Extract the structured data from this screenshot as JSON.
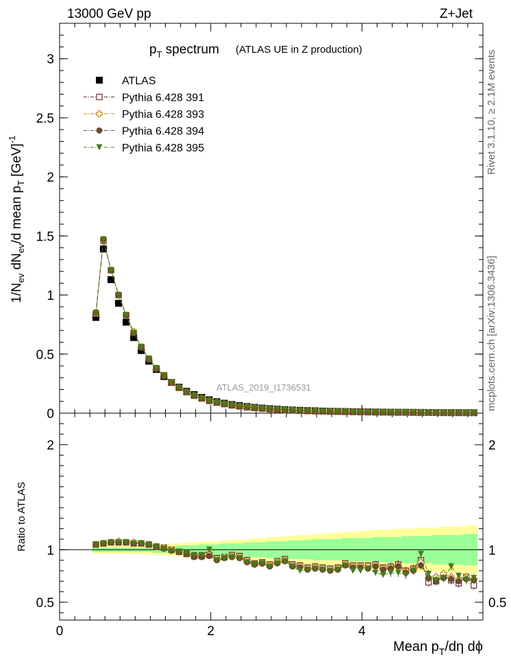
{
  "header": {
    "left": "13000 GeV pp",
    "right": "Z+Jet"
  },
  "title": {
    "main": "p",
    "sub": "T",
    "rest": " spectrum",
    "paren": "(ATLAS UE in Z production)"
  },
  "side_labels": {
    "rivet": "Rivet 3.1.10, ≥ 2.1M events",
    "mcplots": "mcplots.cern.ch [arXiv:1306.3436]"
  },
  "watermark": "ATLAS_2019_I1736531",
  "axes": {
    "ylabel_main": "1/N_ev dN_ev/d mean p_T [GeV]^-1",
    "ylabel_ratio": "Ratio to ATLAS",
    "xlabel": "Mean p_T/dη dϕ"
  },
  "chart_data": [
    {
      "type": "scatter",
      "panel": "main",
      "x": [
        0.48,
        0.58,
        0.68,
        0.78,
        0.88,
        0.98,
        1.08,
        1.18,
        1.28,
        1.38,
        1.48,
        1.58,
        1.68,
        1.78,
        1.88,
        1.98,
        2.08,
        2.18,
        2.28,
        2.38,
        2.48,
        2.58,
        2.68,
        2.78,
        2.88,
        2.98,
        3.08,
        3.18,
        3.28,
        3.38,
        3.48,
        3.58,
        3.68,
        3.78,
        3.88,
        3.98,
        4.08,
        4.18,
        4.28,
        4.38,
        4.48,
        4.58,
        4.68,
        4.78,
        4.88,
        4.98,
        5.08,
        5.18,
        5.28,
        5.38,
        5.48
      ],
      "xlim": [
        0,
        5.6
      ],
      "ylim": [
        0,
        3.3
      ],
      "xticks": [
        "0",
        "2",
        "4"
      ],
      "yticks": [
        "0",
        "0.5",
        "1",
        "1.5",
        "2",
        "2.5",
        "3"
      ],
      "series": [
        {
          "name": "ATLAS",
          "color": "#000000",
          "marker": "square-filled",
          "values": [
            0.81,
            1.39,
            1.13,
            0.93,
            0.77,
            0.64,
            0.53,
            0.44,
            0.37,
            0.31,
            0.26,
            0.22,
            0.185,
            0.157,
            0.133,
            0.113,
            0.097,
            0.084,
            0.073,
            0.064,
            0.056,
            0.049,
            0.043,
            0.038,
            0.034,
            0.03,
            0.027,
            0.024,
            0.022,
            0.02,
            0.018,
            0.016,
            0.015,
            0.014,
            0.013,
            0.012,
            0.011,
            0.01,
            0.009,
            0.0085,
            0.008,
            0.0075,
            0.007,
            0.0065,
            0.006,
            0.0055,
            0.005,
            0.0048,
            0.0046,
            0.0044,
            0.0042
          ]
        },
        {
          "name": "Pythia 6.428 391",
          "color": "#6b2c2c",
          "marker": "square-open",
          "values": [
            0.84,
            1.46,
            1.21,
            1.0,
            0.83,
            0.68,
            0.56,
            0.46,
            0.38,
            0.32,
            0.26,
            0.215,
            0.178,
            0.148,
            0.124,
            0.104,
            0.089,
            0.077,
            0.066,
            0.058,
            0.05,
            0.044,
            0.039,
            0.034,
            0.03,
            0.027,
            0.024,
            0.021,
            0.019,
            0.017,
            0.016,
            0.014,
            0.013,
            0.012,
            0.011,
            0.01,
            0.009,
            0.0085,
            0.008,
            0.0075,
            0.007,
            0.0065,
            0.006,
            0.0057,
            0.0054,
            0.0051,
            0.0048,
            0.0045,
            0.0042,
            0.004,
            0.0038
          ]
        },
        {
          "name": "Pythia 6.428 393",
          "color": "#b8860b",
          "marker": "plus-open",
          "values": [
            0.85,
            1.47,
            1.21,
            1.0,
            0.83,
            0.69,
            0.56,
            0.46,
            0.38,
            0.32,
            0.26,
            0.215,
            0.179,
            0.149,
            0.125,
            0.105,
            0.09,
            0.078,
            0.067,
            0.058,
            0.051,
            0.045,
            0.039,
            0.034,
            0.031,
            0.027,
            0.024,
            0.021,
            0.019,
            0.017,
            0.016,
            0.014,
            0.013,
            0.012,
            0.011,
            0.01,
            0.009,
            0.0085,
            0.008,
            0.0075,
            0.007,
            0.0065,
            0.006,
            0.0057,
            0.0054,
            0.0051,
            0.0048,
            0.0045,
            0.0042,
            0.004,
            0.0038
          ]
        },
        {
          "name": "Pythia 6.428 394",
          "color": "#6b4a2e",
          "marker": "circle-filled",
          "values": [
            0.85,
            1.47,
            1.21,
            1.0,
            0.83,
            0.68,
            0.56,
            0.46,
            0.38,
            0.32,
            0.26,
            0.215,
            0.178,
            0.148,
            0.124,
            0.104,
            0.089,
            0.077,
            0.066,
            0.058,
            0.05,
            0.044,
            0.039,
            0.034,
            0.03,
            0.027,
            0.024,
            0.021,
            0.019,
            0.017,
            0.016,
            0.014,
            0.013,
            0.012,
            0.011,
            0.01,
            0.009,
            0.0085,
            0.008,
            0.0075,
            0.007,
            0.0065,
            0.006,
            0.0057,
            0.0054,
            0.0051,
            0.0048,
            0.0045,
            0.0042,
            0.004,
            0.0038
          ]
        },
        {
          "name": "Pythia 6.428 395",
          "color": "#4a7a1a",
          "marker": "triangle-down-filled",
          "values": [
            0.85,
            1.47,
            1.21,
            1.0,
            0.83,
            0.68,
            0.56,
            0.46,
            0.38,
            0.32,
            0.26,
            0.215,
            0.178,
            0.148,
            0.124,
            0.104,
            0.089,
            0.077,
            0.066,
            0.058,
            0.05,
            0.044,
            0.039,
            0.034,
            0.03,
            0.027,
            0.024,
            0.021,
            0.019,
            0.017,
            0.016,
            0.014,
            0.013,
            0.012,
            0.011,
            0.01,
            0.009,
            0.0085,
            0.008,
            0.0075,
            0.007,
            0.0065,
            0.006,
            0.0057,
            0.0054,
            0.0051,
            0.0048,
            0.0045,
            0.0042,
            0.004,
            0.0038
          ]
        }
      ]
    },
    {
      "type": "scatter",
      "panel": "ratio",
      "ylim": [
        0.33,
        2.3
      ],
      "yticks": [
        "0.5",
        "1",
        "2"
      ],
      "band_inner": [
        0.02,
        0.02,
        0.02,
        0.02,
        0.02,
        0.02,
        0.02,
        0.02,
        0.03,
        0.03,
        0.03,
        0.04,
        0.04,
        0.04,
        0.05,
        0.05,
        0.05,
        0.06,
        0.06,
        0.06,
        0.07,
        0.07,
        0.07,
        0.08,
        0.08,
        0.08,
        0.09,
        0.09,
        0.09,
        0.1,
        0.1,
        0.1,
        0.1,
        0.11,
        0.11,
        0.11,
        0.11,
        0.12,
        0.12,
        0.12,
        0.12,
        0.13,
        0.13,
        0.13,
        0.13,
        0.14,
        0.14,
        0.14,
        0.14,
        0.15,
        0.15
      ],
      "band_outer": [
        0.04,
        0.04,
        0.04,
        0.04,
        0.04,
        0.04,
        0.04,
        0.05,
        0.05,
        0.05,
        0.06,
        0.06,
        0.07,
        0.07,
        0.08,
        0.08,
        0.08,
        0.09,
        0.09,
        0.1,
        0.1,
        0.11,
        0.11,
        0.12,
        0.12,
        0.13,
        0.13,
        0.14,
        0.14,
        0.15,
        0.15,
        0.16,
        0.16,
        0.17,
        0.17,
        0.18,
        0.18,
        0.19,
        0.19,
        0.19,
        0.2,
        0.2,
        0.2,
        0.21,
        0.21,
        0.21,
        0.22,
        0.22,
        0.22,
        0.23,
        0.23
      ],
      "series": [
        {
          "name": "Pythia 6.428 391",
          "values": [
            1.05,
            1.06,
            1.07,
            1.07,
            1.07,
            1.06,
            1.06,
            1.05,
            1.03,
            1.02,
            1.0,
            0.98,
            0.96,
            0.94,
            0.94,
            0.95,
            0.92,
            0.93,
            0.95,
            0.94,
            0.9,
            0.87,
            0.88,
            0.86,
            0.89,
            0.91,
            0.86,
            0.85,
            0.83,
            0.84,
            0.83,
            0.82,
            0.83,
            0.87,
            0.85,
            0.85,
            0.85,
            0.86,
            0.83,
            0.84,
            0.86,
            0.8,
            0.82,
            0.9,
            0.69,
            0.7,
            0.75,
            0.71,
            0.68,
            0.74,
            0.66
          ]
        },
        {
          "name": "Pythia 6.428 393",
          "values": [
            1.05,
            1.06,
            1.07,
            1.08,
            1.07,
            1.07,
            1.06,
            1.05,
            1.03,
            1.02,
            1.0,
            0.98,
            0.96,
            0.94,
            0.94,
            0.95,
            0.91,
            0.93,
            0.94,
            0.93,
            0.89,
            0.86,
            0.87,
            0.85,
            0.88,
            0.9,
            0.85,
            0.84,
            0.82,
            0.83,
            0.82,
            0.81,
            0.82,
            0.86,
            0.84,
            0.84,
            0.84,
            0.85,
            0.82,
            0.83,
            0.85,
            0.79,
            0.81,
            0.88,
            0.73,
            0.74,
            0.77,
            0.74,
            0.72,
            0.74,
            0.72
          ]
        },
        {
          "name": "Pythia 6.428 394",
          "values": [
            1.05,
            1.06,
            1.07,
            1.07,
            1.07,
            1.06,
            1.06,
            1.05,
            1.03,
            1.01,
            0.99,
            0.98,
            0.96,
            0.93,
            0.93,
            0.94,
            0.9,
            0.92,
            0.93,
            0.92,
            0.88,
            0.86,
            0.87,
            0.84,
            0.87,
            0.89,
            0.84,
            0.83,
            0.81,
            0.82,
            0.81,
            0.8,
            0.81,
            0.85,
            0.83,
            0.83,
            0.82,
            0.84,
            0.81,
            0.82,
            0.84,
            0.78,
            0.8,
            0.85,
            0.73,
            0.7,
            0.73,
            0.72,
            0.7,
            0.72,
            0.71
          ]
        },
        {
          "name": "Pythia 6.428 395",
          "values": [
            1.05,
            1.06,
            1.07,
            1.07,
            1.07,
            1.06,
            1.06,
            1.05,
            1.03,
            1.01,
            0.99,
            0.98,
            0.97,
            0.95,
            0.95,
            1.0,
            0.9,
            0.92,
            0.93,
            0.92,
            0.88,
            0.86,
            0.87,
            0.84,
            0.87,
            0.89,
            0.84,
            0.8,
            0.81,
            0.82,
            0.81,
            0.8,
            0.81,
            0.85,
            0.8,
            0.8,
            0.82,
            0.78,
            0.76,
            0.78,
            0.78,
            0.76,
            0.8,
            0.96,
            0.77,
            0.71,
            0.73,
            0.84,
            0.75,
            0.71,
            0.73
          ]
        }
      ]
    }
  ]
}
